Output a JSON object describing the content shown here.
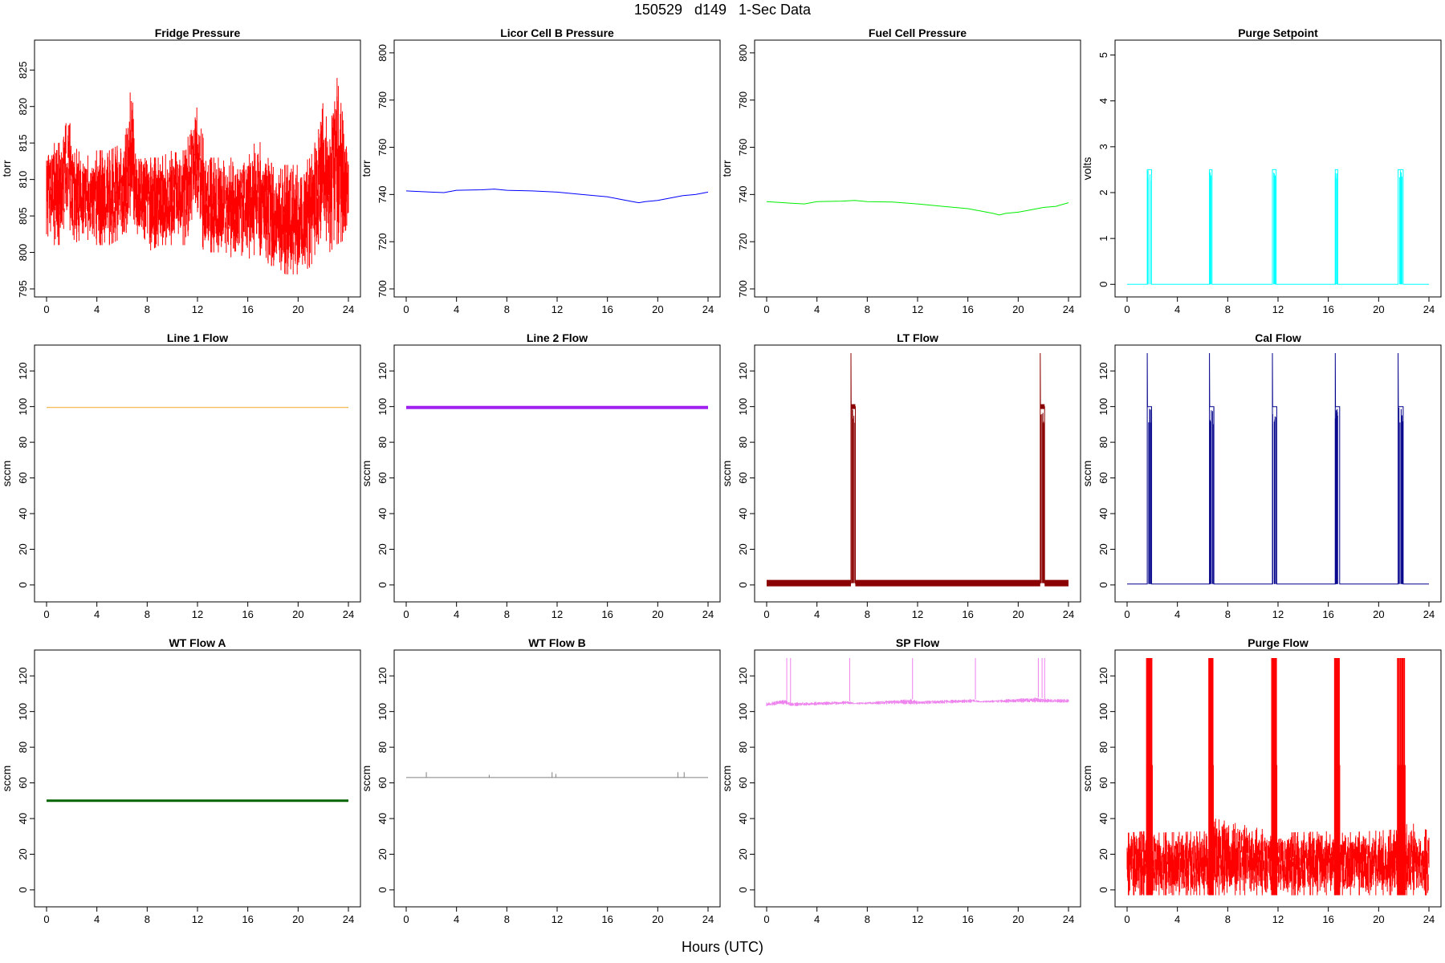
{
  "page_title": "150529   d149   1-Sec Data",
  "x_axis_label": "Hours (UTC)",
  "chart_data": [
    {
      "type": "line",
      "title": "Fridge Pressure",
      "ylabel": "torr",
      "color": "#ff0000",
      "noisy": true,
      "xlim": [
        0,
        24
      ],
      "ylim": [
        795,
        828
      ],
      "xticks": [
        0,
        4,
        8,
        12,
        16,
        20,
        24
      ],
      "yticks": [
        795,
        800,
        805,
        810,
        815,
        820,
        825
      ],
      "series": [
        {
          "x": [
            0,
            1,
            1.5,
            1.8,
            2,
            3,
            4,
            5,
            6,
            6.5,
            6.8,
            7,
            8,
            9,
            10,
            11,
            11.8,
            12,
            12.5,
            13,
            14,
            15,
            16,
            16.8,
            17.2,
            18,
            19,
            20,
            21,
            21.8,
            22,
            22.5,
            23,
            24
          ],
          "low": [
            801,
            801,
            803,
            804,
            801,
            802,
            801,
            801,
            802,
            803,
            807,
            802,
            800,
            801,
            801,
            801,
            805,
            804,
            800,
            800,
            800,
            799,
            799,
            800,
            799,
            798,
            797,
            797,
            798,
            802,
            803,
            800,
            801,
            802
          ],
          "high": [
            815,
            815,
            818,
            819,
            815,
            813,
            814,
            814,
            815,
            818,
            826,
            815,
            813,
            813,
            814,
            814,
            820,
            822,
            815,
            813,
            813,
            813,
            813,
            816,
            814,
            812,
            812,
            812,
            813,
            818,
            822,
            815,
            825,
            814
          ]
        }
      ]
    },
    {
      "type": "line",
      "title": "Licor Cell B Pressure",
      "ylabel": "torr",
      "color": "#0000ff",
      "xlim": [
        0,
        24
      ],
      "ylim": [
        700,
        802
      ],
      "xticks": [
        0,
        4,
        8,
        12,
        16,
        20,
        24
      ],
      "yticks": [
        700,
        720,
        740,
        760,
        780,
        800
      ],
      "series": [
        {
          "x": [
            0,
            2,
            3,
            4,
            6,
            7,
            8,
            10,
            12,
            14,
            16,
            17,
            18,
            18.5,
            19,
            20,
            21,
            22,
            23,
            24
          ],
          "y": [
            741.5,
            741,
            740.8,
            741.8,
            742,
            742.3,
            741.8,
            741.5,
            741,
            740,
            739,
            738,
            737,
            736.5,
            737,
            737.5,
            738.5,
            739.5,
            740,
            741
          ]
        }
      ]
    },
    {
      "type": "line",
      "title": "Fuel Cell Pressure",
      "ylabel": "torr",
      "color": "#00ee00",
      "xlim": [
        0,
        24
      ],
      "ylim": [
        700,
        802
      ],
      "xticks": [
        0,
        4,
        8,
        12,
        16,
        20,
        24
      ],
      "yticks": [
        700,
        720,
        740,
        760,
        780,
        800
      ],
      "series": [
        {
          "x": [
            0,
            2,
            3,
            4,
            6,
            7,
            8,
            10,
            12,
            14,
            16,
            17,
            18,
            18.5,
            19,
            20,
            21,
            22,
            23,
            24
          ],
          "y": [
            737,
            736.3,
            736,
            737,
            737.2,
            737.5,
            737,
            736.8,
            736,
            735,
            734,
            733,
            732,
            731.3,
            732,
            732.5,
            733.5,
            734.5,
            735,
            736.5
          ]
        }
      ]
    },
    {
      "type": "line",
      "title": "Purge Setpoint",
      "ylabel": "volts",
      "color": "#00ffff",
      "xlim": [
        0,
        24
      ],
      "ylim": [
        -0.1,
        5.15
      ],
      "xticks": [
        0,
        4,
        8,
        12,
        16,
        20,
        24
      ],
      "yticks": [
        0,
        1,
        2,
        3,
        4,
        5
      ],
      "baseline": 0,
      "pulse_value": 2.5,
      "pulses": [
        [
          1.6,
          1.95
        ],
        [
          6.55,
          6.75
        ],
        [
          11.55,
          11.85
        ],
        [
          16.55,
          16.75
        ],
        [
          21.55,
          21.95
        ]
      ]
    },
    {
      "type": "line",
      "title": "Line 1 Flow",
      "ylabel": "sccm",
      "color": "#f5a623",
      "xlim": [
        0,
        24
      ],
      "ylim": [
        -5,
        130
      ],
      "xticks": [
        0,
        4,
        8,
        12,
        16,
        20,
        24
      ],
      "yticks": [
        0,
        20,
        40,
        60,
        80,
        100,
        120
      ],
      "series": [
        {
          "x": [
            0,
            24
          ],
          "y": [
            99.5,
            99.5
          ]
        }
      ]
    },
    {
      "type": "line",
      "title": "Line 2 Flow",
      "ylabel": "sccm",
      "color": "#a020f0",
      "width": 4,
      "xlim": [
        0,
        24
      ],
      "ylim": [
        -5,
        130
      ],
      "xticks": [
        0,
        4,
        8,
        12,
        16,
        20,
        24
      ],
      "yticks": [
        0,
        20,
        40,
        60,
        80,
        100,
        120
      ],
      "series": [
        {
          "x": [
            0,
            24
          ],
          "y": [
            99.5,
            99.5
          ]
        }
      ]
    },
    {
      "type": "line",
      "title": "LT Flow",
      "ylabel": "sccm",
      "color": "#8b0000",
      "xlim": [
        0,
        24
      ],
      "ylim": [
        -5,
        130
      ],
      "xticks": [
        0,
        4,
        8,
        12,
        16,
        20,
        24
      ],
      "yticks": [
        0,
        20,
        40,
        60,
        80,
        100,
        120
      ],
      "baseline": 1,
      "baseline_width": 4,
      "pulse_value": 100,
      "spike_value": 130,
      "pulses": [
        [
          6.7,
          7.05
        ],
        [
          21.75,
          22.1
        ]
      ]
    },
    {
      "type": "line",
      "title": "Cal Flow",
      "ylabel": "sccm",
      "color": "#00008b",
      "xlim": [
        0,
        24
      ],
      "ylim": [
        -5,
        130
      ],
      "xticks": [
        0,
        4,
        8,
        12,
        16,
        20,
        24
      ],
      "yticks": [
        0,
        20,
        40,
        60,
        80,
        100,
        120
      ],
      "baseline": 0.5,
      "pulse_value": 100,
      "spike_value": 130,
      "pulses": [
        [
          1.6,
          1.95
        ],
        [
          6.55,
          6.9
        ],
        [
          11.55,
          11.9
        ],
        [
          16.55,
          16.9
        ],
        [
          21.55,
          21.95
        ]
      ]
    },
    {
      "type": "line",
      "title": "WT Flow A",
      "ylabel": "sccm",
      "color": "#006400",
      "width": 3,
      "xlim": [
        0,
        24
      ],
      "ylim": [
        -5,
        130
      ],
      "xticks": [
        0,
        4,
        8,
        12,
        16,
        20,
        24
      ],
      "yticks": [
        0,
        20,
        40,
        60,
        80,
        100,
        120
      ],
      "series": [
        {
          "x": [
            0,
            24
          ],
          "y": [
            50,
            50
          ]
        }
      ]
    },
    {
      "type": "line",
      "title": "WT Flow B",
      "ylabel": "sccm",
      "color": "#808080",
      "xlim": [
        0,
        24
      ],
      "ylim": [
        -5,
        130
      ],
      "xticks": [
        0,
        4,
        8,
        12,
        16,
        20,
        24
      ],
      "yticks": [
        0,
        20,
        40,
        60,
        80,
        100,
        120
      ],
      "series": [
        {
          "x": [
            0,
            24
          ],
          "y": [
            63,
            63
          ]
        }
      ],
      "spikes": [
        [
          1.6,
          66
        ],
        [
          6.6,
          64.5
        ],
        [
          11.6,
          66
        ],
        [
          11.9,
          65
        ],
        [
          21.6,
          66
        ],
        [
          22.1,
          66
        ]
      ]
    },
    {
      "type": "line",
      "title": "SP Flow",
      "ylabel": "sccm",
      "color": "#ee82ee",
      "noisy": true,
      "xlim": [
        0,
        24
      ],
      "ylim": [
        -5,
        130
      ],
      "xticks": [
        0,
        4,
        8,
        12,
        16,
        20,
        24
      ],
      "yticks": [
        0,
        20,
        40,
        60,
        80,
        100,
        120
      ],
      "series": [
        {
          "x": [
            0,
            1.5,
            2,
            6.5,
            7,
            11.5,
            12,
            16.5,
            17,
            21.5,
            22.5,
            24
          ],
          "low": [
            103,
            104,
            103,
            104,
            104,
            104,
            104,
            105,
            105,
            105,
            105,
            105
          ],
          "high": [
            105,
            107,
            105,
            106,
            105,
            107,
            106,
            107,
            106,
            108,
            107,
            107
          ]
        }
      ],
      "spikes": [
        [
          1.6,
          130
        ],
        [
          1.9,
          130
        ],
        [
          6.6,
          130
        ],
        [
          11.6,
          130
        ],
        [
          16.6,
          130
        ],
        [
          21.6,
          130
        ],
        [
          21.9,
          130
        ],
        [
          22.1,
          130
        ]
      ]
    },
    {
      "type": "line",
      "title": "Purge Flow",
      "ylabel": "sccm",
      "color": "#ff0000",
      "noisy": true,
      "xlim": [
        0,
        24
      ],
      "ylim": [
        -5,
        130
      ],
      "xticks": [
        0,
        4,
        8,
        12,
        16,
        20,
        24
      ],
      "yticks": [
        0,
        20,
        40,
        60,
        80,
        100,
        120
      ],
      "series": [
        {
          "x": [
            0,
            1.5,
            2,
            6.5,
            7,
            11.5,
            12,
            16.5,
            17,
            21.5,
            22.5,
            24
          ],
          "low": [
            -3,
            -3,
            -3,
            -3,
            -3,
            -3,
            -3,
            -3,
            -3,
            -3,
            -3,
            -3
          ],
          "high": [
            32,
            33,
            32,
            33,
            40,
            33,
            32,
            33,
            32,
            34,
            38,
            33
          ]
        }
      ],
      "pulses": [
        [
          1.55,
          2.0
        ],
        [
          6.5,
          6.85
        ],
        [
          11.5,
          11.9
        ],
        [
          16.5,
          16.9
        ],
        [
          21.5,
          22.1
        ]
      ],
      "pulse_value": 130
    }
  ]
}
